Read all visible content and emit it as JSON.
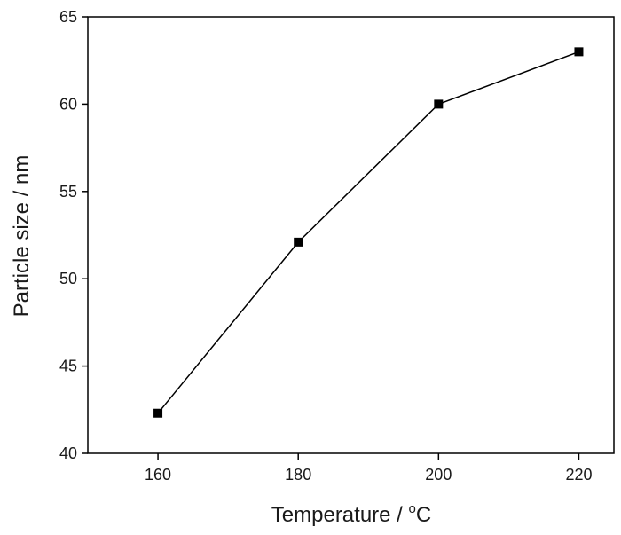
{
  "chart_data": {
    "type": "line",
    "xlabel": "Temperature / ",
    "xlabel_degree": "o",
    "xlabel_unit": "C",
    "ylabel": "Particle size / nm",
    "x": [
      160,
      180,
      200,
      220
    ],
    "series": [
      {
        "values": [
          42.3,
          52.1,
          60.0,
          63.0
        ]
      }
    ],
    "xlim": [
      150,
      225
    ],
    "ylim": [
      40,
      65
    ],
    "xticks": [
      "160",
      "180",
      "200",
      "220"
    ],
    "yticks": [
      "40",
      "45",
      "50",
      "55",
      "60",
      "65"
    ],
    "marker": "square",
    "grid": false,
    "line_color": "#000000",
    "marker_color": "#000000"
  }
}
